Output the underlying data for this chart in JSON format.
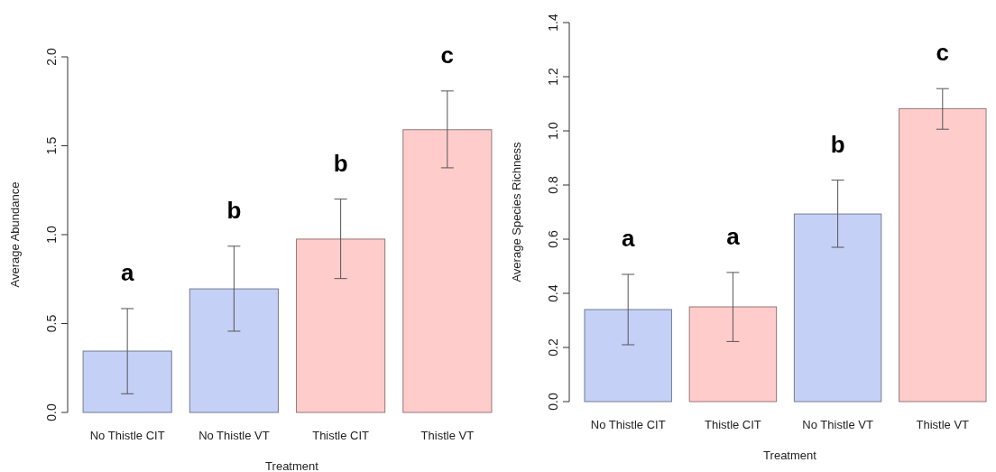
{
  "chart_data": [
    {
      "type": "bar",
      "xlabel": "Treatment",
      "ylabel": "Average Abundance",
      "categories": [
        "No Thistle CIT",
        "No Thistle VT",
        "Thistle CIT",
        "Thistle VT"
      ],
      "values": [
        0.345,
        0.695,
        0.975,
        1.59
      ],
      "colors": [
        "#c5d0f7",
        "#c5d0f7",
        "#ffcccc",
        "#ffcccc"
      ],
      "errors": [
        [
          0.105,
          0.584
        ],
        [
          0.457,
          0.935
        ],
        [
          0.753,
          1.2
        ],
        [
          1.376,
          1.808
        ]
      ],
      "ylim": [
        0,
        2.0
      ],
      "yticks": [
        {
          "value": 0,
          "label": "0.0"
        },
        {
          "value": 0.5,
          "label": "0.5"
        },
        {
          "value": 1,
          "label": "1.0"
        },
        {
          "value": 1.5,
          "label": "1.5"
        },
        {
          "value": 2,
          "label": "2.0"
        }
      ],
      "grid": false,
      "annotations": [
        "a",
        "b",
        "b",
        "c"
      ]
    },
    {
      "type": "bar",
      "xlabel": "Treatment",
      "ylabel": "Average Species Richness",
      "categories": [
        "No Thistle CIT",
        "Thistle CIT",
        "No Thistle VT",
        "Thistle VT"
      ],
      "values": [
        0.34,
        0.35,
        0.693,
        1.082
      ],
      "colors": [
        "#c5d0f7",
        "#ffcccc",
        "#c5d0f7",
        "#ffcccc"
      ],
      "errors": [
        [
          0.21,
          0.47
        ],
        [
          0.222,
          0.477
        ],
        [
          0.57,
          0.818
        ],
        [
          1.006,
          1.156
        ]
      ],
      "ylim": [
        0,
        1.4
      ],
      "yticks": [
        {
          "value": 0,
          "label": "0.0"
        },
        {
          "value": 0.2,
          "label": "0.2"
        },
        {
          "value": 0.4,
          "label": "0.4"
        },
        {
          "value": 0.6,
          "label": "0.6"
        },
        {
          "value": 0.8,
          "label": "0.8"
        },
        {
          "value": 1,
          "label": "1.0"
        },
        {
          "value": 1.2,
          "label": "1.2"
        },
        {
          "value": 1.4,
          "label": "1.4"
        }
      ],
      "grid": false,
      "annotations": [
        "a",
        "a",
        "b",
        "c"
      ]
    }
  ]
}
